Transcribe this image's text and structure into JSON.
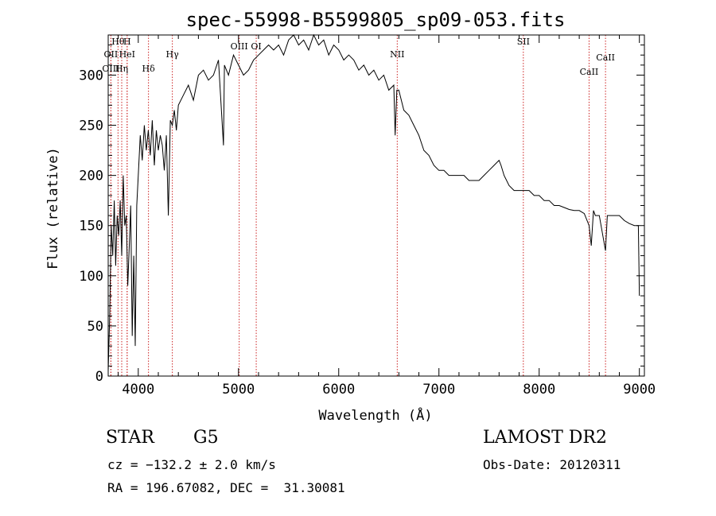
{
  "chart_data": {
    "type": "line",
    "title": "spec-55998-B5599805_sp09-053.fits",
    "xlabel": "Wavelength (Å)",
    "ylabel": "Flux (relative)",
    "xlim": [
      3700,
      9050
    ],
    "ylim": [
      0,
      340
    ],
    "xticks": [
      4000,
      5000,
      6000,
      7000,
      8000,
      9000
    ],
    "yticks": [
      0,
      50,
      100,
      150,
      200,
      250,
      300
    ],
    "grid": false,
    "series": [
      {
        "x": [
          3700,
          3715,
          3730,
          3745,
          3760,
          3775,
          3790,
          3805,
          3820,
          3835,
          3850,
          3865,
          3880,
          3895,
          3910,
          3925,
          3940,
          3955,
          3970,
          3985,
          4000,
          4020,
          4040,
          4060,
          4080,
          4100,
          4120,
          4140,
          4160,
          4180,
          4200,
          4220,
          4240,
          4260,
          4280,
          4300,
          4320,
          4340,
          4360,
          4380,
          4400,
          4450,
          4500,
          4550,
          4600,
          4650,
          4700,
          4750,
          4800,
          4850,
          4860,
          4900,
          4950,
          5000,
          5050,
          5100,
          5150,
          5200,
          5250,
          5300,
          5350,
          5400,
          5450,
          5500,
          5550,
          5600,
          5650,
          5700,
          5750,
          5800,
          5850,
          5900,
          5950,
          6000,
          6050,
          6100,
          6150,
          6200,
          6250,
          6300,
          6350,
          6400,
          6450,
          6500,
          6550,
          6563,
          6580,
          6600,
          6650,
          6700,
          6750,
          6800,
          6850,
          6900,
          6950,
          7000,
          7050,
          7100,
          7150,
          7200,
          7250,
          7300,
          7350,
          7400,
          7450,
          7500,
          7550,
          7600,
          7620,
          7650,
          7700,
          7750,
          7800,
          7850,
          7900,
          7950,
          8000,
          8050,
          8100,
          8150,
          8200,
          8250,
          8300,
          8350,
          8400,
          8450,
          8498,
          8520,
          8542,
          8560,
          8600,
          8662,
          8680,
          8700,
          8750,
          8800,
          8850,
          8900,
          8950,
          8990,
          9000
        ],
        "y": [
          5,
          60,
          150,
          120,
          175,
          110,
          160,
          140,
          175,
          120,
          200,
          150,
          160,
          90,
          130,
          170,
          40,
          120,
          30,
          170,
          200,
          240,
          215,
          250,
          225,
          245,
          220,
          255,
          210,
          245,
          225,
          240,
          230,
          205,
          240,
          160,
          255,
          250,
          265,
          245,
          270,
          280,
          290,
          275,
          300,
          305,
          295,
          300,
          315,
          230,
          310,
          300,
          320,
          310,
          300,
          305,
          315,
          320,
          325,
          330,
          325,
          330,
          320,
          335,
          340,
          330,
          335,
          325,
          340,
          330,
          335,
          320,
          330,
          325,
          315,
          320,
          315,
          305,
          310,
          300,
          305,
          295,
          300,
          285,
          290,
          240,
          285,
          285,
          265,
          260,
          250,
          240,
          225,
          220,
          210,
          205,
          205,
          200,
          200,
          200,
          200,
          195,
          195,
          195,
          200,
          205,
          210,
          215,
          210,
          200,
          190,
          185,
          185,
          185,
          185,
          180,
          180,
          175,
          175,
          170,
          170,
          168,
          166,
          165,
          165,
          162,
          150,
          130,
          165,
          160,
          160,
          125,
          160,
          160,
          160,
          160,
          155,
          152,
          150,
          150,
          80
        ]
      }
    ],
    "lines": [
      {
        "label": "Hθ",
        "x": 3798
      },
      {
        "label": "H",
        "x": 3889
      },
      {
        "label": "OII",
        "x": 3727
      },
      {
        "label": "HeI",
        "x": 3889
      },
      {
        "label": "OIII",
        "x": 3727
      },
      {
        "label": "Hη",
        "x": 3835
      },
      {
        "label": "Hδ",
        "x": 4102
      },
      {
        "label": "Hγ",
        "x": 4340
      },
      {
        "label": "OIII",
        "x": 5007
      },
      {
        "label": "OI",
        "x": 5177
      },
      {
        "label": "NII",
        "x": 6584
      },
      {
        "label": "SII",
        "x": 7842
      },
      {
        "label": "CaII",
        "x": 8498
      },
      {
        "label": "CaII",
        "x": 8662
      }
    ]
  },
  "footer": {
    "object_class": "STAR",
    "subclass": "G5",
    "redshift": "cz = −132.2 ± 2.0 km/s",
    "coords": "RA = 196.67082, DEC =  31.30081",
    "survey": "LAMOST DR2",
    "obs_date": "Obs-Date: 20120311"
  }
}
